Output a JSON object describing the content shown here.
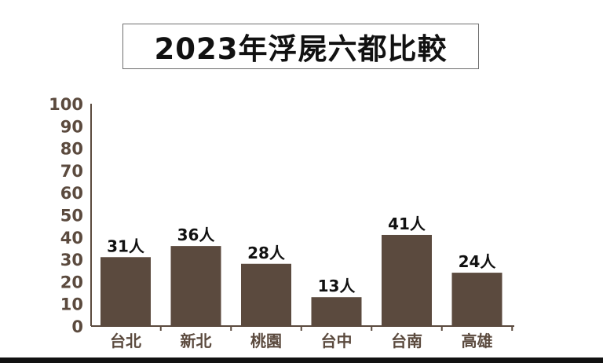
{
  "chart_data": {
    "type": "bar",
    "title": "2023年浮屍六都比較",
    "categories": [
      "台北",
      "新北",
      "桃園",
      "台中",
      "台南",
      "高雄"
    ],
    "values": [
      31,
      36,
      28,
      13,
      41,
      24
    ],
    "data_labels": [
      "31人",
      "36人",
      "28人",
      "13人",
      "41人",
      "24人"
    ],
    "ylim": [
      0,
      100
    ],
    "yticks": [
      "0",
      "10",
      "20",
      "30",
      "40",
      "50",
      "60",
      "70",
      "80",
      "90",
      "100"
    ],
    "xlabel": "",
    "ylabel": "",
    "grid": false,
    "legend": "none",
    "colors": {
      "bar": "#5b4a3e",
      "axis": "#5b4a3e",
      "tick_text": "#5b4a3e",
      "label_text": "#111111"
    }
  }
}
